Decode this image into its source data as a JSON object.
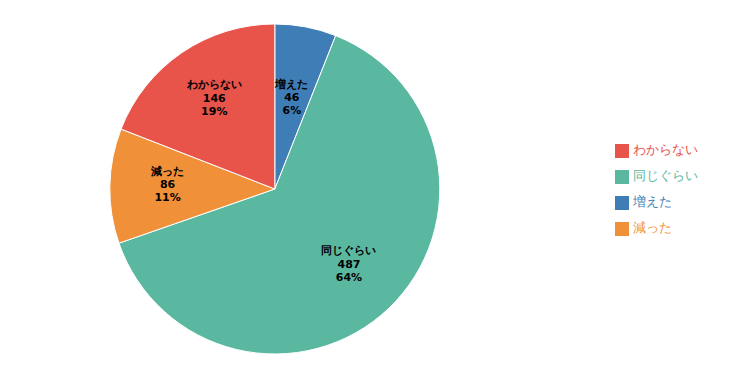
{
  "chart_data": {
    "type": "pie",
    "categories": [
      "増えた",
      "同じぐらい",
      "減った",
      "わからない"
    ],
    "values": [
      46,
      487,
      86,
      146
    ],
    "percentages": [
      "6%",
      "64%",
      "11%",
      "19%"
    ],
    "colors": [
      "#3E7DB5",
      "#5BB8A0",
      "#F0913A",
      "#E8534A"
    ],
    "legend": "right",
    "data_labels": true
  }
}
